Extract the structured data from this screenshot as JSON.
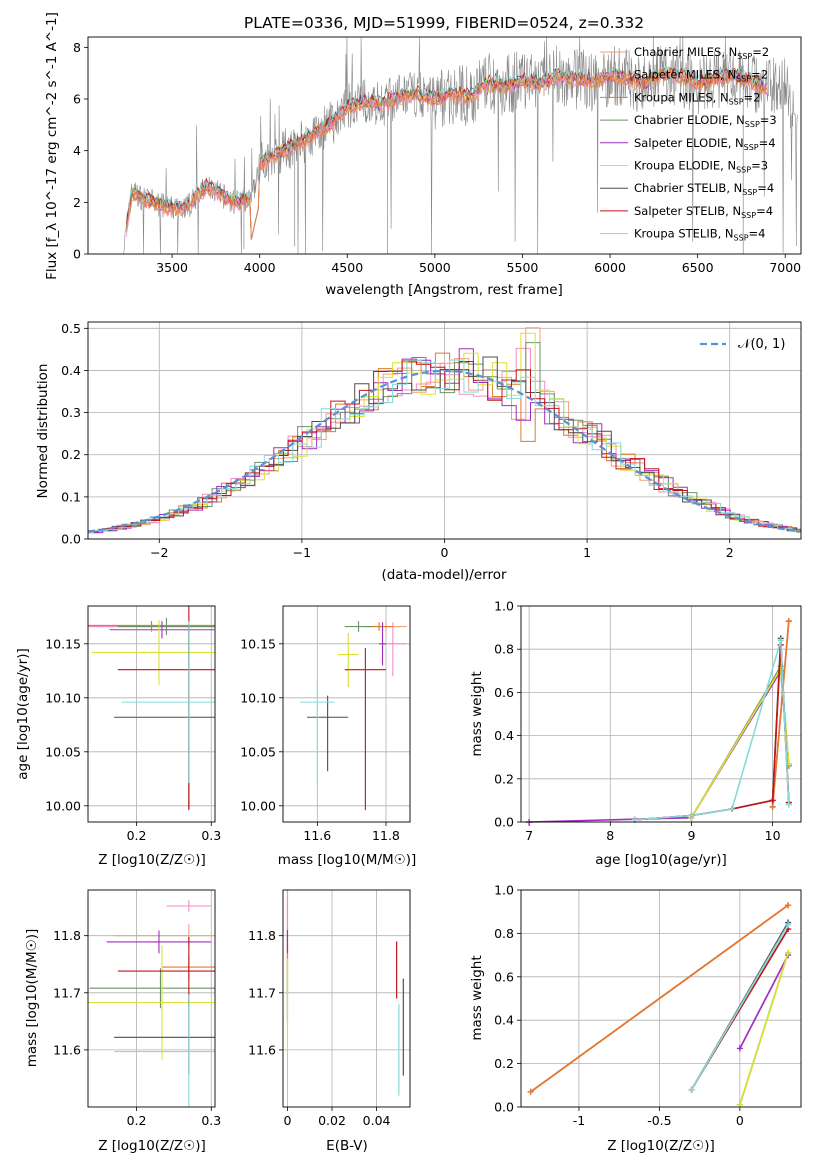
{
  "title": "PLATE=0336, MJD=51999, FIBERID=0524, z=0.332",
  "colors": [
    "#d62728-like",
    "#f08bc6",
    "#e8711d",
    "#6a9a5b",
    "#9a2ab8",
    "#d9e21a",
    "#555555",
    "#c41414",
    "#7fd8dc"
  ],
  "series_colors": [
    "#f3a07c",
    "#f58bc8",
    "#e07a2c",
    "#6b9368",
    "#a02fc0",
    "#dae233",
    "#4f4f4f",
    "#c0151b",
    "#86dada"
  ],
  "legend_series": [
    {
      "name": "Chabrier MILES",
      "nssp": "2"
    },
    {
      "name": "Salpeter MILES",
      "nssp": "2"
    },
    {
      "name": "Kroupa MILES",
      "nssp": "2"
    },
    {
      "name": "Chabrier ELODIE",
      "nssp": "3"
    },
    {
      "name": "Salpeter ELODIE",
      "nssp": "4"
    },
    {
      "name": "Kroupa ELODIE",
      "nssp": "3"
    },
    {
      "name": "Chabrier STELIB",
      "nssp": "4"
    },
    {
      "name": "Salpeter STELIB",
      "nssp": "4"
    },
    {
      "name": "Kroupa STELIB",
      "nssp": "4"
    }
  ],
  "chart_data": [
    {
      "id": "spectrum",
      "type": "line",
      "title": "PLATE=0336, MJD=51999, FIBERID=0524, z=0.332",
      "xlabel": "wavelength [Angstrom, rest frame]",
      "ylabel": "Flux [f_λ 10^-17 erg cm^-2 s^-1 A^-1]",
      "xlim": [
        3020,
        7090
      ],
      "ylim": [
        0,
        8.4
      ],
      "xticks": [
        3500,
        4000,
        4500,
        5000,
        5500,
        6000,
        6500,
        7000
      ],
      "yticks": [
        0,
        2,
        4,
        6,
        8
      ],
      "data_continuum": {
        "x": [
          3220,
          3270,
          3300,
          3350,
          3400,
          3450,
          3500,
          3550,
          3600,
          3650,
          3700,
          3750,
          3800,
          3850,
          3900,
          3950,
          4000,
          4100,
          4200,
          4300,
          4400,
          4500,
          4600,
          4700,
          4800,
          4900,
          5000,
          5100,
          5200,
          5300,
          5400,
          5500,
          5600,
          5700,
          5800,
          5900,
          6000,
          6100,
          6200,
          6300,
          6400,
          6500,
          6600,
          6700,
          6800,
          6900,
          7000,
          7070
        ],
        "y": [
          0,
          2.4,
          2.3,
          2.1,
          2.0,
          1.85,
          1.75,
          1.8,
          1.9,
          2.3,
          2.6,
          2.4,
          2.2,
          2.0,
          2.1,
          2.0,
          3.5,
          3.9,
          4.2,
          4.6,
          5.0,
          5.7,
          5.9,
          5.8,
          6.1,
          6.2,
          6.0,
          6.2,
          6.1,
          6.6,
          6.5,
          6.7,
          6.6,
          6.9,
          6.8,
          6.7,
          6.9,
          6.8,
          6.6,
          7.0,
          6.9,
          6.6,
          6.8,
          6.9,
          6.7,
          6.4,
          6.4,
          5.5
        ]
      },
      "model_series": [
        "Chabrier MILES",
        "Salpeter MILES",
        "Kroupa MILES",
        "Chabrier ELODIE",
        "Salpeter ELODIE",
        "Kroupa ELODIE",
        "Chabrier STELIB",
        "Salpeter STELIB",
        "Kroupa STELIB"
      ]
    },
    {
      "id": "residuals",
      "type": "line",
      "xlabel": "(data-model)/error",
      "ylabel": "Normed distribution",
      "xlim": [
        -2.5,
        2.5
      ],
      "ylim": [
        0,
        0.515
      ],
      "xticks": [
        -2,
        -1,
        0,
        1,
        2
      ],
      "yticks": [
        0.0,
        0.1,
        0.2,
        0.3,
        0.4,
        0.5
      ],
      "legend": "𝒩(0, 1)",
      "reference": "normal distribution mean 0 sigma 1",
      "bin_width": 0.1
    },
    {
      "id": "age_vs_Z",
      "type": "scatter",
      "xlabel": "Z [log10(Z/Z☉)]",
      "ylabel": "age [log10(age/yr)]",
      "xlim": [
        0.135,
        0.305
      ],
      "ylim": [
        9.985,
        10.185
      ],
      "xticks": [
        0.2,
        0.3
      ],
      "yticks": [
        10.0,
        10.05,
        10.1,
        10.15
      ],
      "points": [
        {
          "x": 0.22,
          "y": 10.166,
          "xerr": 0.085,
          "yerr": 0.005
        },
        {
          "x": 0.22,
          "y": 10.166,
          "xerr": 0.085,
          "yerr": 0.005
        },
        {
          "x": 0.22,
          "y": 10.167,
          "xerr": 0.085,
          "yerr": 0.004
        },
        {
          "x": 0.24,
          "y": 10.166,
          "xerr": 0.065,
          "yerr": 0.008
        },
        {
          "x": 0.234,
          "y": 10.163,
          "xerr": 0.07,
          "yerr": 0.008
        },
        {
          "x": 0.23,
          "y": 10.142,
          "xerr": 0.09,
          "yerr": 0.03
        },
        {
          "x": 0.27,
          "y": 10.082,
          "xerr": 0.1,
          "yerr": 0.085
        },
        {
          "x": 0.27,
          "y": 10.126,
          "xerr": 0.095,
          "yerr": 0.13
        },
        {
          "x": 0.27,
          "y": 10.096,
          "xerr": 0.09,
          "yerr": 0.075
        }
      ]
    },
    {
      "id": "age_vs_mass",
      "type": "scatter",
      "xlabel": "mass [log10(M/M☉)]",
      "xlim": [
        11.5,
        11.87
      ],
      "ylim": [
        9.985,
        10.185
      ],
      "xticks": [
        11.6,
        11.8
      ],
      "yticks": [
        10.0,
        10.05,
        10.1,
        10.15
      ]
    },
    {
      "id": "massweight_vs_age",
      "type": "line",
      "xlabel": "age [log10(age/yr)]",
      "ylabel": "mass weight",
      "xlim": [
        6.9,
        10.35
      ],
      "ylim": [
        0,
        1.0
      ],
      "xticks": [
        7,
        8,
        9,
        10
      ],
      "yticks": [
        0.0,
        0.2,
        0.4,
        0.6,
        0.8,
        1.0
      ],
      "series": [
        {
          "name": "Chabrier MILES",
          "x": [
            10.0,
            10.2
          ],
          "y": [
            0.07,
            0.93
          ]
        },
        {
          "name": "Salpeter MILES",
          "x": [
            10.0,
            10.2
          ],
          "y": [
            0.07,
            0.93
          ]
        },
        {
          "name": "Kroupa MILES",
          "x": [
            10.0,
            10.2
          ],
          "y": [
            0.07,
            0.93
          ]
        },
        {
          "name": "Chabrier ELODIE",
          "x": [
            9.0,
            10.1,
            10.2
          ],
          "y": [
            0.02,
            0.72,
            0.26
          ]
        },
        {
          "name": "Salpeter ELODIE",
          "x": [
            7.0,
            9.0,
            10.1,
            10.2
          ],
          "y": [
            0.0,
            0.02,
            0.7,
            0.27
          ]
        },
        {
          "name": "Kroupa ELODIE",
          "x": [
            9.0,
            10.1,
            10.2
          ],
          "y": [
            0.02,
            0.71,
            0.27
          ]
        },
        {
          "name": "Chabrier STELIB",
          "x": [
            8.3,
            9.0,
            9.5,
            10.0,
            10.1,
            10.2
          ],
          "y": [
            0.01,
            0.03,
            0.06,
            0.1,
            0.85,
            0.09
          ]
        },
        {
          "name": "Salpeter STELIB",
          "x": [
            8.3,
            9.0,
            9.5,
            10.0,
            10.1,
            10.2
          ],
          "y": [
            0.01,
            0.03,
            0.06,
            0.1,
            0.82,
            0.09
          ]
        },
        {
          "name": "Kroupa STELIB",
          "x": [
            8.3,
            9.0,
            9.5,
            10.1,
            10.2
          ],
          "y": [
            0.01,
            0.03,
            0.06,
            0.84,
            0.08
          ]
        }
      ]
    },
    {
      "id": "mass_vs_Z",
      "type": "scatter",
      "xlabel": "Z [log10(Z/Z☉)]",
      "ylabel": "mass [log10(M/M☉)]",
      "xlim": [
        0.135,
        0.305
      ],
      "ylim": [
        11.5,
        11.88
      ],
      "xticks": [
        0.2,
        0.3
      ],
      "yticks": [
        11.6,
        11.7,
        11.8
      ]
    },
    {
      "id": "mass_vs_EBV",
      "type": "scatter",
      "xlabel": "E(B-V)",
      "xlim": [
        -0.002,
        0.055
      ],
      "ylim": [
        11.5,
        11.88
      ],
      "xticks": [
        0.0,
        0.02,
        0.04
      ],
      "yticks": [
        11.6,
        11.7,
        11.8
      ]
    },
    {
      "id": "massweight_vs_Z",
      "type": "line",
      "xlabel": "Z [log10(Z/Z☉)]",
      "ylabel": "mass weight",
      "xlim": [
        -1.36,
        0.38
      ],
      "ylim": [
        0,
        1.0
      ],
      "xticks": [
        -1.0,
        -0.5,
        0.0
      ],
      "yticks": [
        0.0,
        0.2,
        0.4,
        0.6,
        0.8,
        1.0
      ],
      "series": [
        {
          "name": "Chabrier MILES",
          "x": [
            -1.3,
            0.3
          ],
          "y": [
            0.07,
            0.93
          ]
        },
        {
          "name": "Salpeter MILES",
          "x": [
            -1.3,
            0.3
          ],
          "y": [
            0.07,
            0.93
          ]
        },
        {
          "name": "Kroupa MILES",
          "x": [
            -1.3,
            0.3
          ],
          "y": [
            0.07,
            0.93
          ]
        },
        {
          "name": "Chabrier ELODIE",
          "x": [
            0.0,
            0.3
          ],
          "y": [
            0.01,
            0.71
          ]
        },
        {
          "name": "Salpeter ELODIE",
          "x": [
            0.0,
            0.3
          ],
          "y": [
            0.27,
            0.7
          ]
        },
        {
          "name": "Kroupa ELODIE",
          "x": [
            0.0,
            0.3
          ],
          "y": [
            0.01,
            0.71
          ]
        },
        {
          "name": "Chabrier STELIB",
          "x": [
            -0.3,
            0.3
          ],
          "y": [
            0.08,
            0.85
          ]
        },
        {
          "name": "Salpeter STELIB",
          "x": [
            -0.3,
            0.3
          ],
          "y": [
            0.08,
            0.82
          ]
        },
        {
          "name": "Kroupa STELIB",
          "x": [
            -0.3,
            0.3
          ],
          "y": [
            0.08,
            0.84
          ]
        }
      ]
    }
  ]
}
